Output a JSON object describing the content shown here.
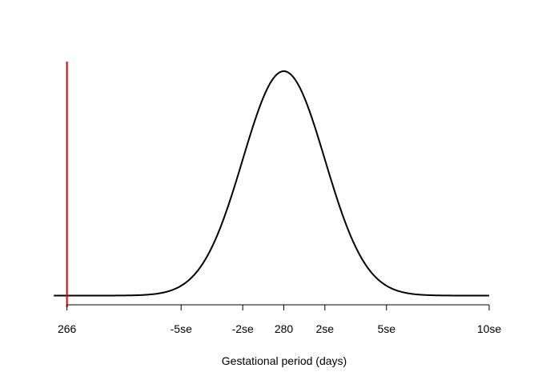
{
  "chart_data": {
    "type": "line",
    "title": "",
    "xlabel": "Gestational period (days)",
    "ylabel": "",
    "xlim": [
      -0.6,
      9.8
    ],
    "ticks": [
      {
        "value": -0.28,
        "label": "266"
      },
      {
        "value": 2.5,
        "label": "-5se"
      },
      {
        "value": 4.0,
        "label": "-2se"
      },
      {
        "value": 5.0,
        "label": "280"
      },
      {
        "value": 6.0,
        "label": "2se"
      },
      {
        "value": 7.5,
        "label": "5se"
      },
      {
        "value": 10.0,
        "label": "10se"
      }
    ],
    "series": [
      {
        "type": "normal-density",
        "mean": 5.0,
        "sd": 1.0,
        "x_from": -0.6,
        "x_to": 10.0,
        "color": "#000000"
      }
    ],
    "marker_line": {
      "x": -0.28,
      "color": "#dd0000"
    }
  }
}
